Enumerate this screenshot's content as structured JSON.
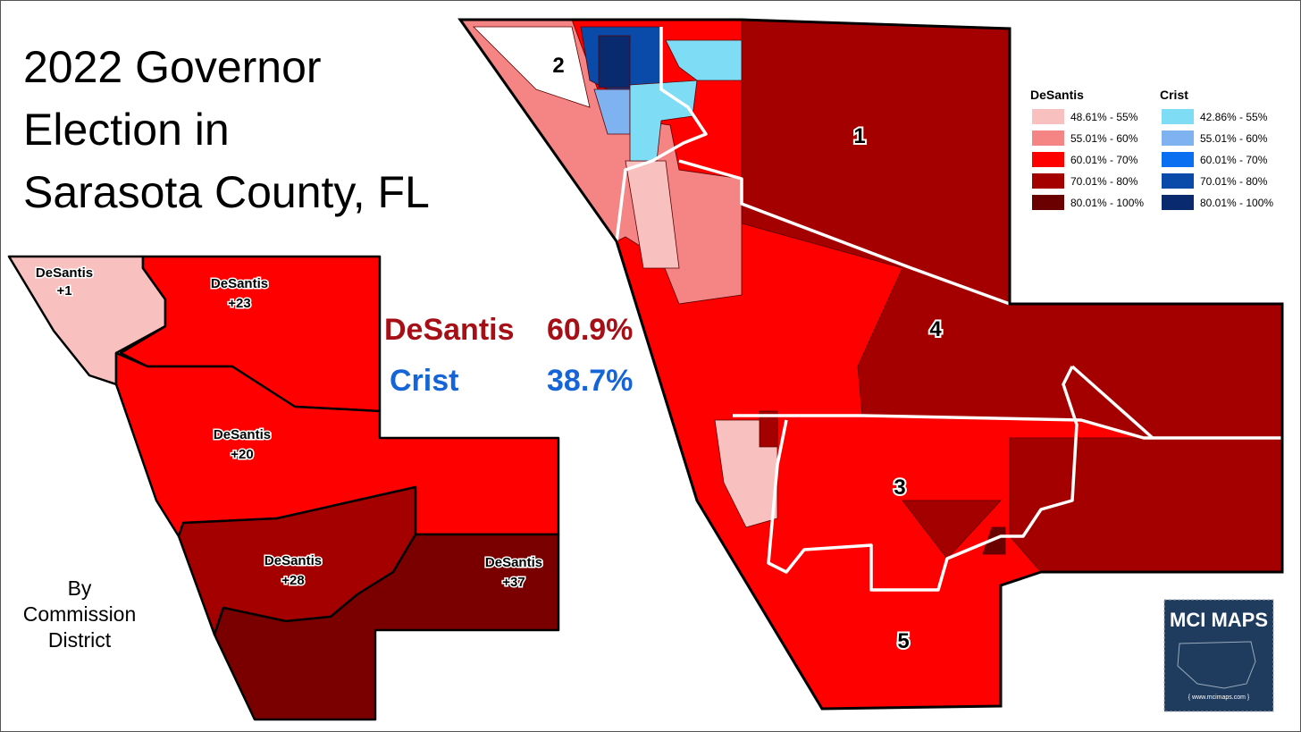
{
  "title": [
    "2022 Governor",
    "Election in",
    "Sarasota County, FL"
  ],
  "results": [
    {
      "name": "DeSantis",
      "value": "60.9%",
      "color": "#a50f15"
    },
    {
      "name": "Crist",
      "value": "38.7%",
      "color": "#1565d8"
    }
  ],
  "subtitle": [
    "By",
    "Commission",
    "District"
  ],
  "district_map": [
    {
      "name": "DeSantis",
      "margin": "+1"
    },
    {
      "name": "DeSantis",
      "margin": "+23"
    },
    {
      "name": "DeSantis",
      "margin": "+20"
    },
    {
      "name": "DeSantis",
      "margin": "+28"
    },
    {
      "name": "DeSantis",
      "margin": "+37"
    }
  ],
  "precinct_map_labels": [
    "1",
    "2",
    "3",
    "4",
    "5"
  ],
  "legend": [
    {
      "title": "DeSantis",
      "items": [
        {
          "label": "48.61% - 55%",
          "color": "#f9c0c0"
        },
        {
          "label": "55.01% - 60%",
          "color": "#f58585"
        },
        {
          "label": "60.01% - 70%",
          "color": "#ff0000"
        },
        {
          "label": "70.01% - 80%",
          "color": "#a50000"
        },
        {
          "label": "80.01% - 100%",
          "color": "#6b0000"
        }
      ]
    },
    {
      "title": "Crist",
      "items": [
        {
          "label": "42.86% - 55%",
          "color": "#7fdcf5"
        },
        {
          "label": "55.01% - 60%",
          "color": "#7fb2f0"
        },
        {
          "label": "60.01% - 70%",
          "color": "#0a6ff0"
        },
        {
          "label": "70.01% - 80%",
          "color": "#0a4aa8"
        },
        {
          "label": "80.01% - 100%",
          "color": "#0a2a70"
        }
      ]
    }
  ],
  "logo": {
    "name": "MCI MAPS",
    "url": "{ www.mcimaps.com }"
  }
}
